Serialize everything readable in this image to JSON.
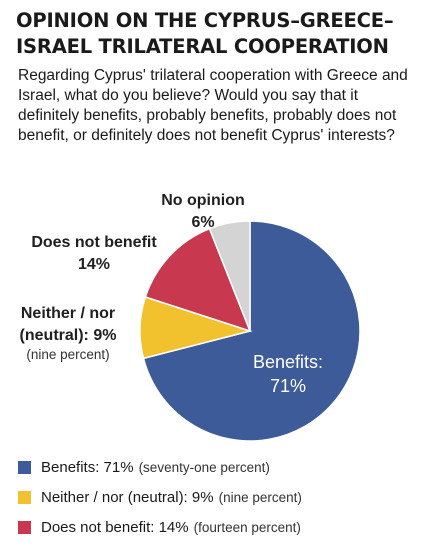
{
  "header": {
    "title_line1": "OPINION ON THE CYPRUS–GREECE–",
    "title_line2": "ISRAEL TRILATERAL COOPERATION",
    "question": "Regarding Cyprus' trilateral cooperation with Greece and Israel, what do you believe? Would you say that it definitely benefits, probably benefits, probably does not benefit, or definitely does not benefit Cyprus' interests?"
  },
  "labels": {
    "benefits_line1": "Benefits:",
    "benefits_line2": "71%",
    "neither_line1": "Neither / nor",
    "neither_line2": "(neutral): 9%",
    "neither_note": "(nine percent)",
    "not_benefit_line1": "Does not benefit",
    "not_benefit_line2": "14%",
    "no_opinion_line1": "No opinion",
    "no_opinion_line2": "6%"
  },
  "legend": [
    {
      "main": "Benefits: 71%",
      "note": "(seventy-one percent)",
      "color": "#3d5a99"
    },
    {
      "main": "Neither / nor (neutral): 9%",
      "note": "(nine percent)",
      "color": "#f2c12e"
    },
    {
      "main": "Does not benefit: 14%",
      "note": "(fourteen percent)",
      "color": "#c8394f"
    }
  ],
  "chart_data": {
    "type": "pie",
    "slices": [
      {
        "label": "Benefits",
        "value": 71,
        "color": "#3d5a99"
      },
      {
        "label": "Neither / nor (neutral)",
        "value": 9,
        "color": "#f2c12e"
      },
      {
        "label": "Does not benefit",
        "value": 14,
        "color": "#c8394f"
      },
      {
        "label": "No opinion",
        "value": 6,
        "color": "#d4d4d4"
      }
    ],
    "start": "top",
    "direction": "clockwise"
  }
}
